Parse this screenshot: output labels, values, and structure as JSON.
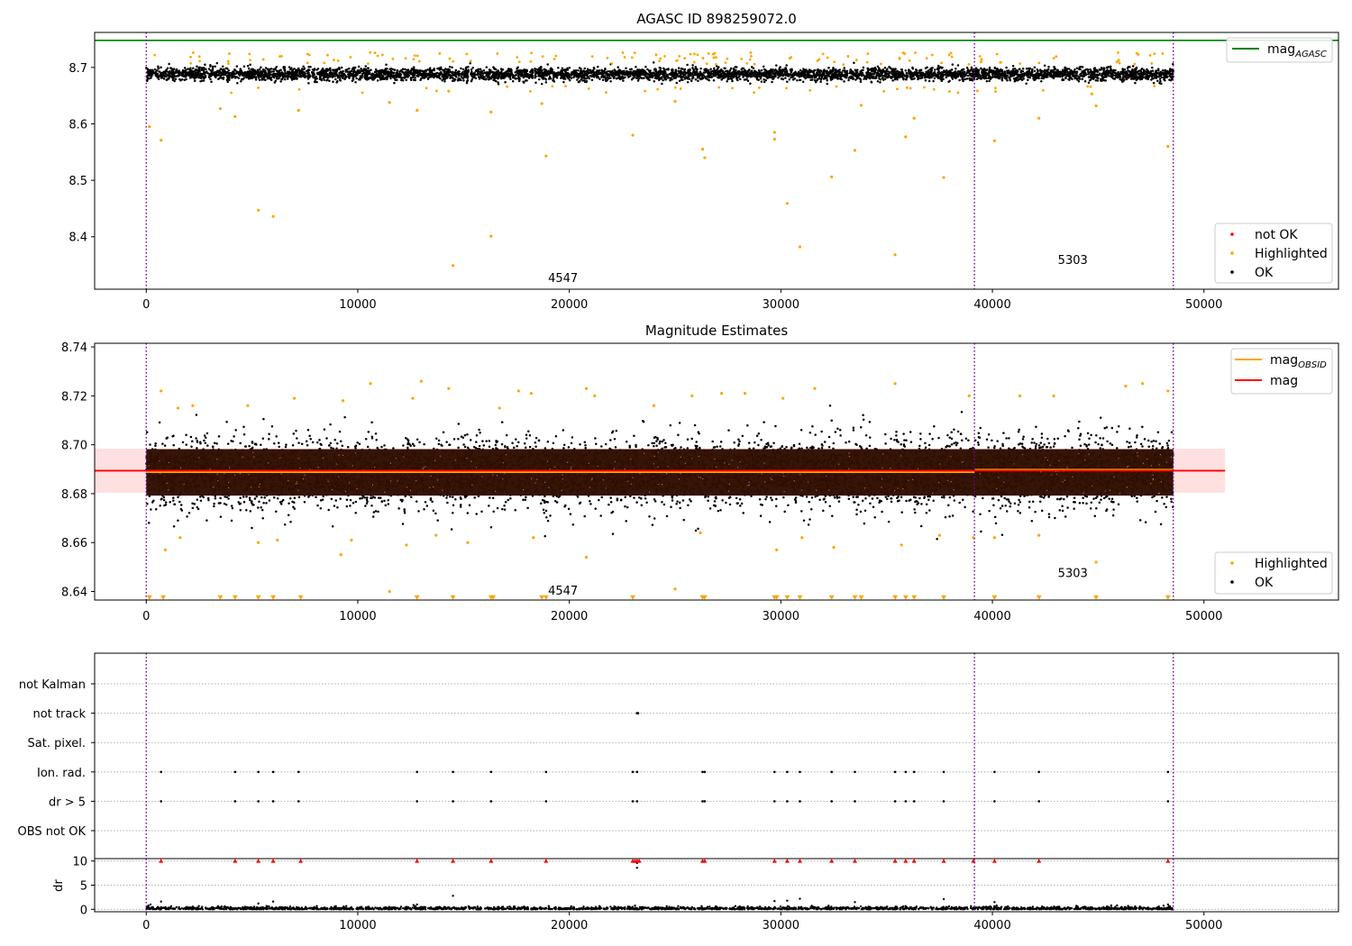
{
  "chart_data": [
    {
      "type": "scatter",
      "title": "AGASC ID 898259072.0",
      "xlabel": "",
      "ylabel": "",
      "xlim": [
        -2440,
        56360
      ],
      "ylim": [
        8.307,
        8.762
      ],
      "xticks": [
        0,
        10000,
        20000,
        30000,
        40000,
        50000
      ],
      "xtick_labels": [
        "0",
        "10000",
        "20000",
        "30000",
        "40000",
        "50000"
      ],
      "yticks": [
        8.4,
        8.5,
        8.6,
        8.7
      ],
      "ytick_labels": [
        "8.4",
        "8.5",
        "8.6",
        "8.7"
      ],
      "vlines": [
        0,
        39150,
        48550
      ],
      "hline": {
        "name": "mag",
        "sub": "AGASC",
        "y": 8.748,
        "color": "#008000"
      },
      "band": {
        "y_center": 8.688,
        "spread": 0.01,
        "x_range": [
          0,
          48550
        ]
      },
      "series": [
        {
          "name": "not OK",
          "color": "#ff0000",
          "points": []
        },
        {
          "name": "Highlighted",
          "color": "#ffa500",
          "points": [
            [
              150,
              8.595
            ],
            [
              700,
              8.571
            ],
            [
              3500,
              8.627
            ],
            [
              4200,
              8.613
            ],
            [
              5300,
              8.447
            ],
            [
              6000,
              8.436
            ],
            [
              7200,
              8.624
            ],
            [
              11500,
              8.638
            ],
            [
              12800,
              8.624
            ],
            [
              14500,
              8.349
            ],
            [
              16300,
              8.621
            ],
            [
              16300,
              8.401
            ],
            [
              18700,
              8.636
            ],
            [
              18900,
              8.543
            ],
            [
              23000,
              8.58
            ],
            [
              25000,
              8.64
            ],
            [
              26300,
              8.555
            ],
            [
              26400,
              8.54
            ],
            [
              29700,
              8.585
            ],
            [
              29700,
              8.573
            ],
            [
              30300,
              8.459
            ],
            [
              30900,
              8.382
            ],
            [
              32400,
              8.506
            ],
            [
              33500,
              8.553
            ],
            [
              33800,
              8.633
            ],
            [
              35400,
              8.368
            ],
            [
              35900,
              8.577
            ],
            [
              36300,
              8.61
            ],
            [
              37700,
              8.505
            ],
            [
              40100,
              8.57
            ],
            [
              42200,
              8.61
            ],
            [
              44700,
              8.653
            ],
            [
              44900,
              8.632
            ],
            [
              48300,
              8.56
            ]
          ]
        },
        {
          "name": "OK",
          "color": "#000000",
          "points": []
        }
      ],
      "legend_lines": [
        {
          "name": "mag",
          "sub": "AGASC",
          "color": "#008000"
        }
      ],
      "legend_markers": [
        "not OK",
        "Highlighted",
        "OK"
      ],
      "annotations": [
        {
          "text": "4547",
          "x": 19700,
          "y": 8.328
        },
        {
          "text": "5303",
          "x": 43800,
          "y": 8.36
        }
      ]
    },
    {
      "type": "scatter",
      "title": "Magnitude Estimates",
      "xlabel": "",
      "ylabel": "",
      "xlim": [
        -2440,
        56360
      ],
      "ylim": [
        8.6365,
        8.7415
      ],
      "xticks": [
        0,
        10000,
        20000,
        30000,
        40000,
        50000
      ],
      "xtick_labels": [
        "0",
        "10000",
        "20000",
        "30000",
        "40000",
        "50000"
      ],
      "yticks": [
        8.64,
        8.66,
        8.68,
        8.7,
        8.72,
        8.74
      ],
      "ytick_labels": [
        "8.64",
        "8.66",
        "8.68",
        "8.70",
        "8.72",
        "8.74"
      ],
      "vlines": [
        0,
        39150,
        48550
      ],
      "mag_band": {
        "y": 8.6894,
        "lo": 8.6804,
        "hi": 8.6984,
        "x_range": [
          -2440,
          51000
        ],
        "color": "#ff0000"
      },
      "mag_obsid": [
        {
          "x_range": [
            0,
            39150
          ],
          "y": 8.6888
        },
        {
          "x_range": [
            39150,
            48550
          ],
          "y": 8.6898
        }
      ],
      "band": {
        "y_center": 8.6888,
        "spread": 0.0072,
        "x_range": [
          0,
          48550
        ]
      },
      "series": [
        {
          "name": "Highlighted",
          "color": "#ffa500",
          "points": [
            [
              700,
              8.722
            ],
            [
              1500,
              8.715
            ],
            [
              2200,
              8.716
            ],
            [
              4800,
              8.716
            ],
            [
              7000,
              8.719
            ],
            [
              9300,
              8.718
            ],
            [
              10600,
              8.725
            ],
            [
              12600,
              8.719
            ],
            [
              13000,
              8.726
            ],
            [
              14300,
              8.723
            ],
            [
              16700,
              8.715
            ],
            [
              17600,
              8.722
            ],
            [
              18200,
              8.721
            ],
            [
              20800,
              8.723
            ],
            [
              21200,
              8.72
            ],
            [
              24000,
              8.716
            ],
            [
              25800,
              8.72
            ],
            [
              27200,
              8.721
            ],
            [
              28300,
              8.721
            ],
            [
              30100,
              8.719
            ],
            [
              31600,
              8.723
            ],
            [
              35400,
              8.725
            ],
            [
              38900,
              8.72
            ],
            [
              41300,
              8.72
            ],
            [
              42900,
              8.72
            ],
            [
              46300,
              8.724
            ],
            [
              47100,
              8.725
            ],
            [
              48300,
              8.722
            ],
            [
              900,
              8.657
            ],
            [
              1600,
              8.662
            ],
            [
              5300,
              8.66
            ],
            [
              6200,
              8.661
            ],
            [
              9200,
              8.655
            ],
            [
              9700,
              8.661
            ],
            [
              12300,
              8.659
            ],
            [
              13700,
              8.663
            ],
            [
              15200,
              8.66
            ],
            [
              18300,
              8.662
            ],
            [
              20800,
              8.654
            ],
            [
              26200,
              8.664
            ],
            [
              29800,
              8.657
            ],
            [
              31000,
              8.662
            ],
            [
              32500,
              8.658
            ],
            [
              35700,
              8.659
            ],
            [
              37500,
              8.663
            ],
            [
              39100,
              8.662
            ],
            [
              40100,
              8.662
            ],
            [
              42200,
              8.663
            ],
            [
              44900,
              8.652
            ],
            [
              11500,
              8.64
            ],
            [
              25000,
              8.641
            ]
          ]
        },
        {
          "name": "OK",
          "color": "#000000",
          "points": []
        }
      ],
      "triangles_y": 8.6375,
      "triangles_x": [
        150,
        800,
        3500,
        4200,
        5300,
        6000,
        7300,
        12800,
        14500,
        16300,
        16400,
        18700,
        18900,
        23000,
        26300,
        26400,
        29700,
        29800,
        30300,
        30900,
        32400,
        33500,
        33800,
        35400,
        35900,
        36300,
        37700,
        40100,
        42200,
        44900,
        48300
      ],
      "legend_lines": [
        {
          "name": "mag",
          "sub": "OBSID",
          "color": "#ffa500"
        },
        {
          "name": "mag",
          "sub": "",
          "color": "#ff0000"
        }
      ],
      "legend_markers": [
        "Highlighted",
        "OK"
      ],
      "annotations": [
        {
          "text": "4547",
          "x": 19700,
          "y": 8.6405
        },
        {
          "text": "5303",
          "x": 43800,
          "y": 8.6478
        }
      ]
    },
    {
      "type": "scatter",
      "title": "",
      "xlabel": "",
      "ylabel": "",
      "xlim": [
        -2440,
        56360
      ],
      "categories": [
        "not Kalman",
        "not track",
        "Sat. pixel.",
        "Ion. rad.",
        "dr > 5",
        "OBS not OK"
      ],
      "vlines": [
        0,
        39150,
        48550
      ],
      "flags": {
        "not track": [
          23200,
          23250
        ],
        "Ion. rad.": [
          700,
          4200,
          5300,
          6000,
          7200,
          12800,
          14500,
          16300,
          18900,
          23000,
          23200,
          26300,
          26400,
          29700,
          30300,
          30900,
          32400,
          33500,
          35400,
          35900,
          36300,
          37700,
          40100,
          42200,
          48300
        ],
        "dr > 5": [
          700,
          4200,
          5300,
          6000,
          7200,
          12800,
          14500,
          16300,
          18900,
          23000,
          23200,
          26300,
          26400,
          29700,
          30300,
          30900,
          32400,
          33500,
          35400,
          35900,
          36300,
          37700,
          40100,
          42200,
          48300
        ]
      }
    },
    {
      "type": "scatter",
      "title": "",
      "xlabel": "",
      "ylabel": "dr",
      "xlim": [
        -2440,
        56360
      ],
      "ylim": [
        -0.5,
        10.5
      ],
      "xticks": [
        0,
        10000,
        20000,
        30000,
        40000,
        50000
      ],
      "xtick_labels": [
        "0",
        "10000",
        "20000",
        "30000",
        "40000",
        "50000"
      ],
      "yticks": [
        0,
        5,
        10
      ],
      "ytick_labels": [
        "0",
        "5",
        "10"
      ],
      "vlines": [
        0,
        39150,
        48550
      ],
      "capped_y": 10,
      "capped_x": [
        700,
        4200,
        5300,
        6000,
        7300,
        12800,
        14500,
        16300,
        18900,
        23000,
        23100,
        23200,
        23300,
        26300,
        26400,
        29700,
        30300,
        30900,
        32400,
        33500,
        35400,
        35900,
        36300,
        37700,
        39100,
        40100,
        42200,
        48300
      ],
      "series": [
        {
          "name": "dr",
          "color": "#000000",
          "points": [
            [
              700,
              1.6
            ],
            [
              5300,
              1.2
            ],
            [
              6000,
              1.6
            ],
            [
              12800,
              1.0
            ],
            [
              14500,
              2.8
            ],
            [
              23200,
              8.6
            ],
            [
              23200,
              9.6
            ],
            [
              29700,
              1.7
            ],
            [
              30300,
              1.8
            ],
            [
              30900,
              2.2
            ],
            [
              33500,
              1.5
            ],
            [
              37700,
              2.1
            ],
            [
              40100,
              1.5
            ],
            [
              48300,
              1.0
            ],
            [
              200,
              1.0
            ],
            [
              100,
              0.8
            ]
          ]
        }
      ]
    }
  ]
}
